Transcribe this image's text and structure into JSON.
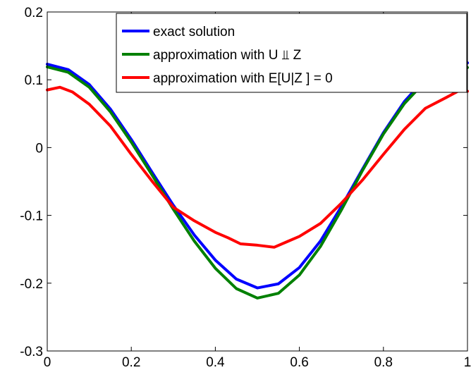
{
  "chart_data": {
    "type": "line",
    "title": "",
    "xlabel": "",
    "ylabel": "",
    "xlim": [
      0,
      1
    ],
    "ylim": [
      -0.3,
      0.2
    ],
    "grid": false,
    "legend_position": "top-right",
    "x_ticks": [
      0,
      0.2,
      0.4,
      0.6,
      0.8,
      1
    ],
    "x_tick_labels": [
      "0",
      "0.2",
      "0.4",
      "0.6",
      "0.8",
      "1"
    ],
    "y_ticks": [
      -0.3,
      -0.2,
      -0.1,
      0,
      0.1,
      0.2
    ],
    "y_tick_labels": [
      "-0.3",
      "-0.2",
      "-0.1",
      "0",
      "0.1",
      "0.2"
    ],
    "series": [
      {
        "name": "exact solution",
        "color": "#0000ff",
        "x": [
          0,
          0.05,
          0.1,
          0.15,
          0.2,
          0.25,
          0.3,
          0.35,
          0.4,
          0.45,
          0.5,
          0.55,
          0.6,
          0.65,
          0.7,
          0.75,
          0.8,
          0.85,
          0.9,
          0.95,
          1
        ],
        "y": [
          0.123,
          0.115,
          0.093,
          0.057,
          0.012,
          -0.037,
          -0.085,
          -0.129,
          -0.166,
          -0.194,
          -0.207,
          -0.201,
          -0.177,
          -0.138,
          -0.087,
          -0.032,
          0.022,
          0.068,
          0.102,
          0.121,
          0.125
        ]
      },
      {
        "name": "approximation with U ⫫ Z",
        "color": "#008000",
        "x": [
          0,
          0.05,
          0.1,
          0.15,
          0.2,
          0.25,
          0.3,
          0.35,
          0.4,
          0.45,
          0.5,
          0.55,
          0.6,
          0.65,
          0.7,
          0.75,
          0.8,
          0.85,
          0.9,
          0.95,
          1
        ],
        "y": [
          0.119,
          0.111,
          0.089,
          0.053,
          0.008,
          -0.041,
          -0.091,
          -0.138,
          -0.178,
          -0.208,
          -0.222,
          -0.215,
          -0.188,
          -0.146,
          -0.092,
          -0.034,
          0.02,
          0.065,
          0.098,
          0.115,
          0.118
        ]
      },
      {
        "name": "approximation with E[U|Z ] = 0",
        "color": "#ff0000",
        "x": [
          0,
          0.03,
          0.06,
          0.1,
          0.15,
          0.2,
          0.25,
          0.3,
          0.35,
          0.4,
          0.43,
          0.46,
          0.5,
          0.54,
          0.57,
          0.6,
          0.65,
          0.7,
          0.75,
          0.8,
          0.85,
          0.9,
          0.95,
          0.98,
          1
        ],
        "y": [
          0.085,
          0.089,
          0.082,
          0.064,
          0.032,
          -0.01,
          -0.05,
          -0.088,
          -0.108,
          -0.125,
          -0.133,
          -0.142,
          -0.144,
          -0.147,
          -0.139,
          -0.131,
          -0.112,
          -0.082,
          -0.048,
          -0.01,
          0.027,
          0.058,
          0.074,
          0.084,
          0.083
        ]
      }
    ]
  }
}
